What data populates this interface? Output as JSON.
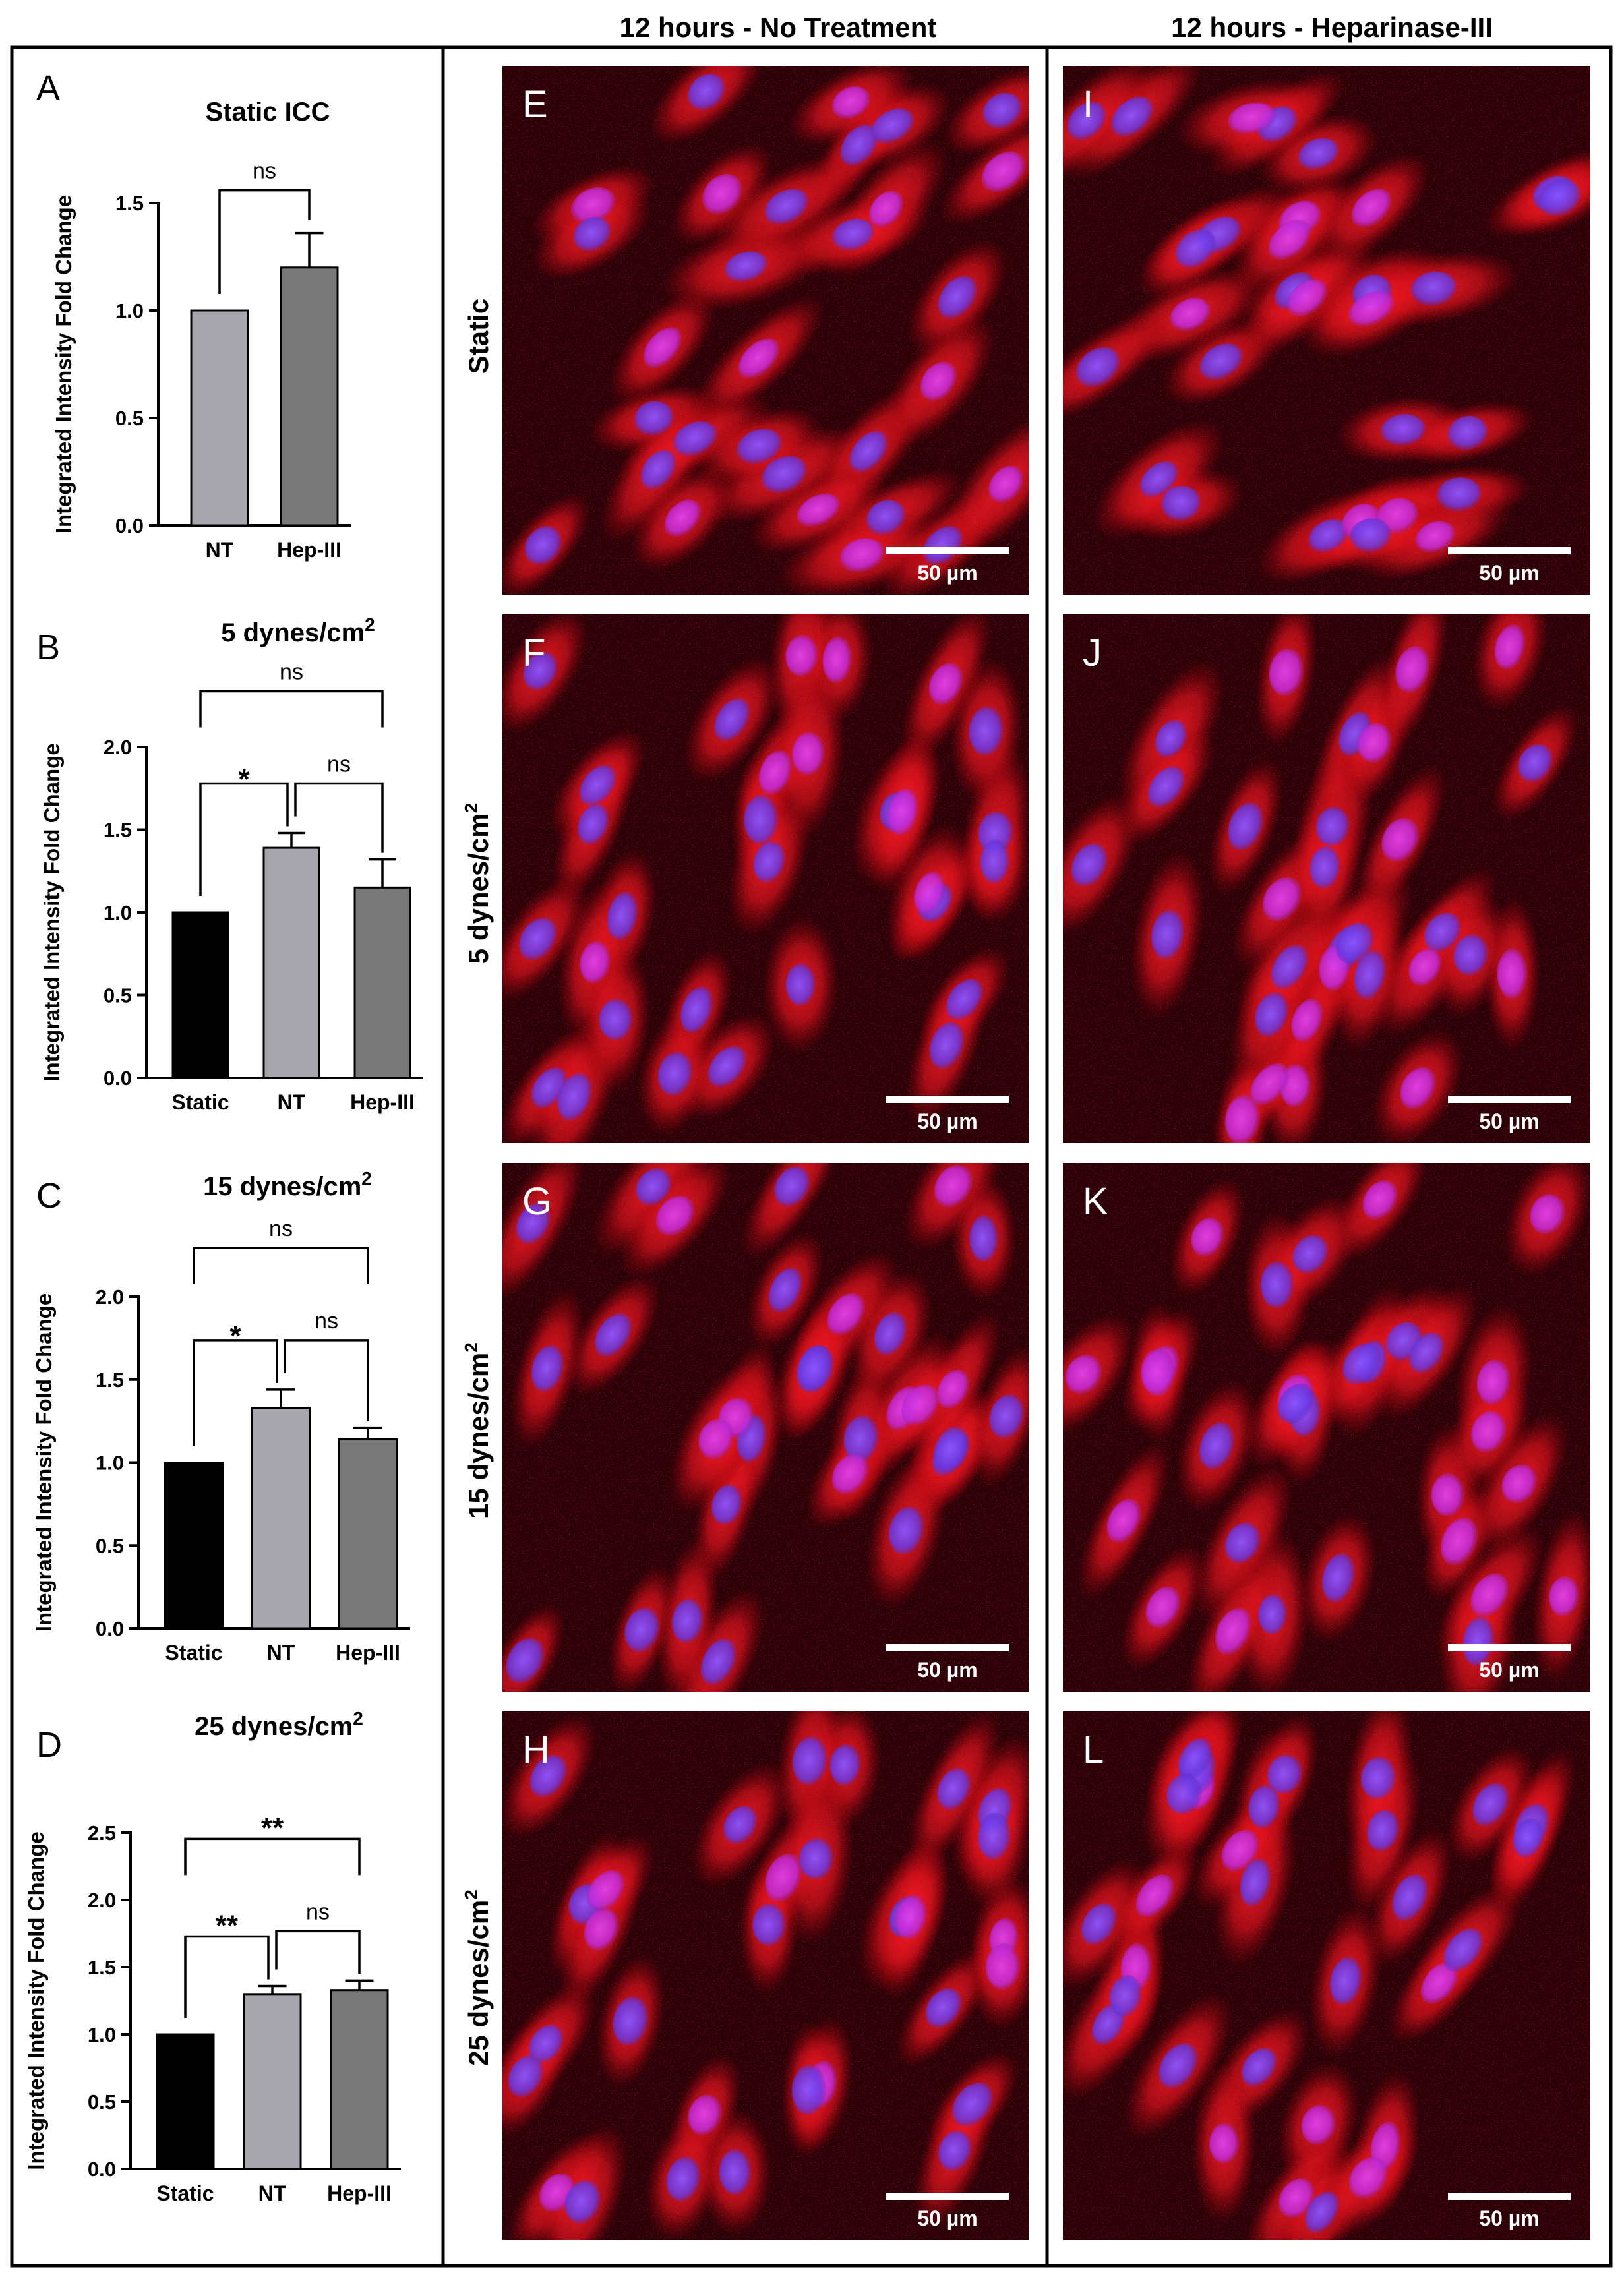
{
  "columns": {
    "no_treatment": "12 hours - No Treatment",
    "heparinase": "12 hours - Heparinase-III"
  },
  "rows": [
    "Static",
    "5 dynes/cm2",
    "15 dynes/cm2",
    "25 dynes/cm2"
  ],
  "row_display": {
    "base": [
      "Static",
      "5 dynes/cm",
      "15 dynes/cm",
      "25 dynes/cm"
    ],
    "sup": [
      "",
      "2",
      "2",
      "2"
    ]
  },
  "panel_letters": {
    "charts": [
      "A",
      "B",
      "C",
      "D"
    ],
    "left_images": [
      "E",
      "F",
      "G",
      "H"
    ],
    "right_images": [
      "I",
      "J",
      "K",
      "L"
    ]
  },
  "scale_bar_label": "50 µm",
  "colors": {
    "static_bar": "#000000",
    "nt_bar": "#a6a6ac",
    "hep_bar": "#787878",
    "stain_red": "#e0101c",
    "nucleus_blue": "#6a3ce8"
  },
  "chart_data": [
    {
      "type": "bar",
      "title": "Static ICC",
      "title_sup": "",
      "ylabel": "Integrated Intensity Fold Change",
      "categories": [
        "NT",
        "Hep-III"
      ],
      "values": [
        1.0,
        1.2
      ],
      "errors": [
        0,
        0.16
      ],
      "ylim": [
        0,
        1.5
      ],
      "yticks": [
        "0.0",
        "0.5",
        "1.0",
        "1.5"
      ],
      "significance": [
        {
          "from": 0,
          "to": 1,
          "label": "ns"
        }
      ]
    },
    {
      "type": "bar",
      "title": "5 dynes/cm",
      "title_sup": "2",
      "ylabel": "Integrated Intensity Fold Change",
      "categories": [
        "Static",
        "NT",
        "Hep-III"
      ],
      "values": [
        1.0,
        1.39,
        1.15
      ],
      "errors": [
        0,
        0.09,
        0.17
      ],
      "ylim": [
        0,
        2.0
      ],
      "yticks": [
        "0.0",
        "0.5",
        "1.0",
        "1.5",
        "2.0"
      ],
      "significance": [
        {
          "from": 0,
          "to": 2,
          "label": "ns"
        },
        {
          "from": 0,
          "to": 1,
          "label": "*"
        },
        {
          "from": 1,
          "to": 2,
          "label": "ns"
        }
      ]
    },
    {
      "type": "bar",
      "title": "15 dynes/cm",
      "title_sup": "2",
      "ylabel": "Integrated Intensity Fold Change",
      "categories": [
        "Static",
        "NT",
        "Hep-III"
      ],
      "values": [
        1.0,
        1.33,
        1.14
      ],
      "errors": [
        0,
        0.11,
        0.07
      ],
      "ylim": [
        0,
        2.0
      ],
      "yticks": [
        "0.0",
        "0.5",
        "1.0",
        "1.5",
        "2.0"
      ],
      "significance": [
        {
          "from": 0,
          "to": 2,
          "label": "ns"
        },
        {
          "from": 0,
          "to": 1,
          "label": "*"
        },
        {
          "from": 1,
          "to": 2,
          "label": "ns"
        }
      ]
    },
    {
      "type": "bar",
      "title": "25 dynes/cm",
      "title_sup": "2",
      "ylabel": "Integrated Intensity Fold Change",
      "categories": [
        "Static",
        "NT",
        "Hep-III"
      ],
      "values": [
        1.0,
        1.3,
        1.33
      ],
      "errors": [
        0,
        0.06,
        0.07
      ],
      "ylim": [
        0,
        2.5
      ],
      "yticks": [
        "0.0",
        "0.5",
        "1.0",
        "1.5",
        "2.0",
        "2.5"
      ],
      "significance": [
        {
          "from": 0,
          "to": 2,
          "label": "**"
        },
        {
          "from": 0,
          "to": 1,
          "label": "**"
        },
        {
          "from": 1,
          "to": 2,
          "label": "ns"
        }
      ]
    }
  ]
}
